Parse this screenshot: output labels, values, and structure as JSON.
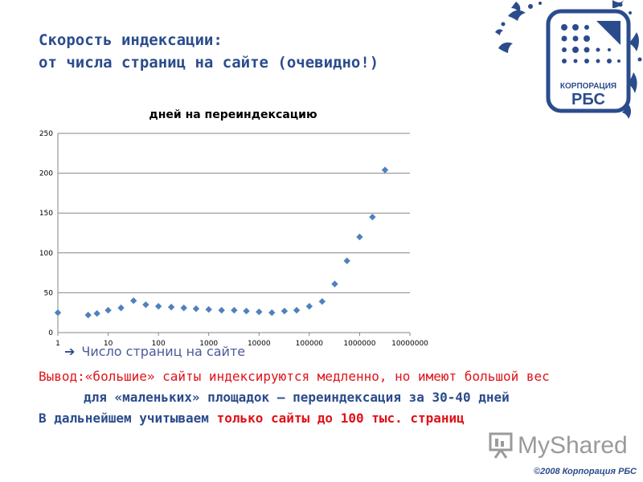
{
  "slide": {
    "title_line1": "Скорость индексации:",
    "title_line2": "от числа страниц на сайте (очевидно!)",
    "x_axis_name": "Число страниц на сайте",
    "conclusion_prefix": "Вывод:",
    "conclusion_red": "«большие» сайты индексируются медленно, но имеют большой вес",
    "conclusion_line2": "для «маленьких» площадок – переиндексация за 30-40 дней",
    "conclusion_line3_blue": "В дальнейшем учитываем ",
    "conclusion_line3_red": "только сайты до 100 тыс. страниц",
    "copyright": "©2008 Корпорация РБС",
    "watermark_text": "MyShared"
  },
  "logo": {
    "line1": "КОРПОРАЦИЯ",
    "line2": "РБС",
    "color": "#2b4c8c"
  },
  "colors": {
    "title": "#2b4c8c",
    "accent_red": "#e0121a",
    "marker": "#4f81bd",
    "grid": "#868686"
  },
  "chart_data": {
    "type": "scatter",
    "title": "дней на переиндексацию",
    "xscale": "log",
    "xlim": [
      1,
      10000000
    ],
    "ylim": [
      0,
      250
    ],
    "xticks": [
      "1",
      "10",
      "100",
      "1000",
      "10000",
      "100000",
      "1000000",
      "10000000"
    ],
    "yticks": [
      "0",
      "50",
      "100",
      "150",
      "200",
      "250"
    ],
    "grid": true,
    "points": [
      {
        "x": 1,
        "y": 25
      },
      {
        "x": 4,
        "y": 22
      },
      {
        "x": 6,
        "y": 24
      },
      {
        "x": 10,
        "y": 28
      },
      {
        "x": 18,
        "y": 31
      },
      {
        "x": 32,
        "y": 40
      },
      {
        "x": 56,
        "y": 35
      },
      {
        "x": 100,
        "y": 33
      },
      {
        "x": 180,
        "y": 32
      },
      {
        "x": 320,
        "y": 31
      },
      {
        "x": 560,
        "y": 30
      },
      {
        "x": 1000,
        "y": 29
      },
      {
        "x": 1800,
        "y": 28
      },
      {
        "x": 3200,
        "y": 28
      },
      {
        "x": 5600,
        "y": 27
      },
      {
        "x": 10000,
        "y": 26
      },
      {
        "x": 18000,
        "y": 25
      },
      {
        "x": 32000,
        "y": 27
      },
      {
        "x": 56000,
        "y": 28
      },
      {
        "x": 100000,
        "y": 33
      },
      {
        "x": 180000,
        "y": 39
      },
      {
        "x": 320000,
        "y": 61
      },
      {
        "x": 560000,
        "y": 90
      },
      {
        "x": 1000000,
        "y": 120
      },
      {
        "x": 1800000,
        "y": 145
      },
      {
        "x": 3200000,
        "y": 204
      }
    ]
  }
}
